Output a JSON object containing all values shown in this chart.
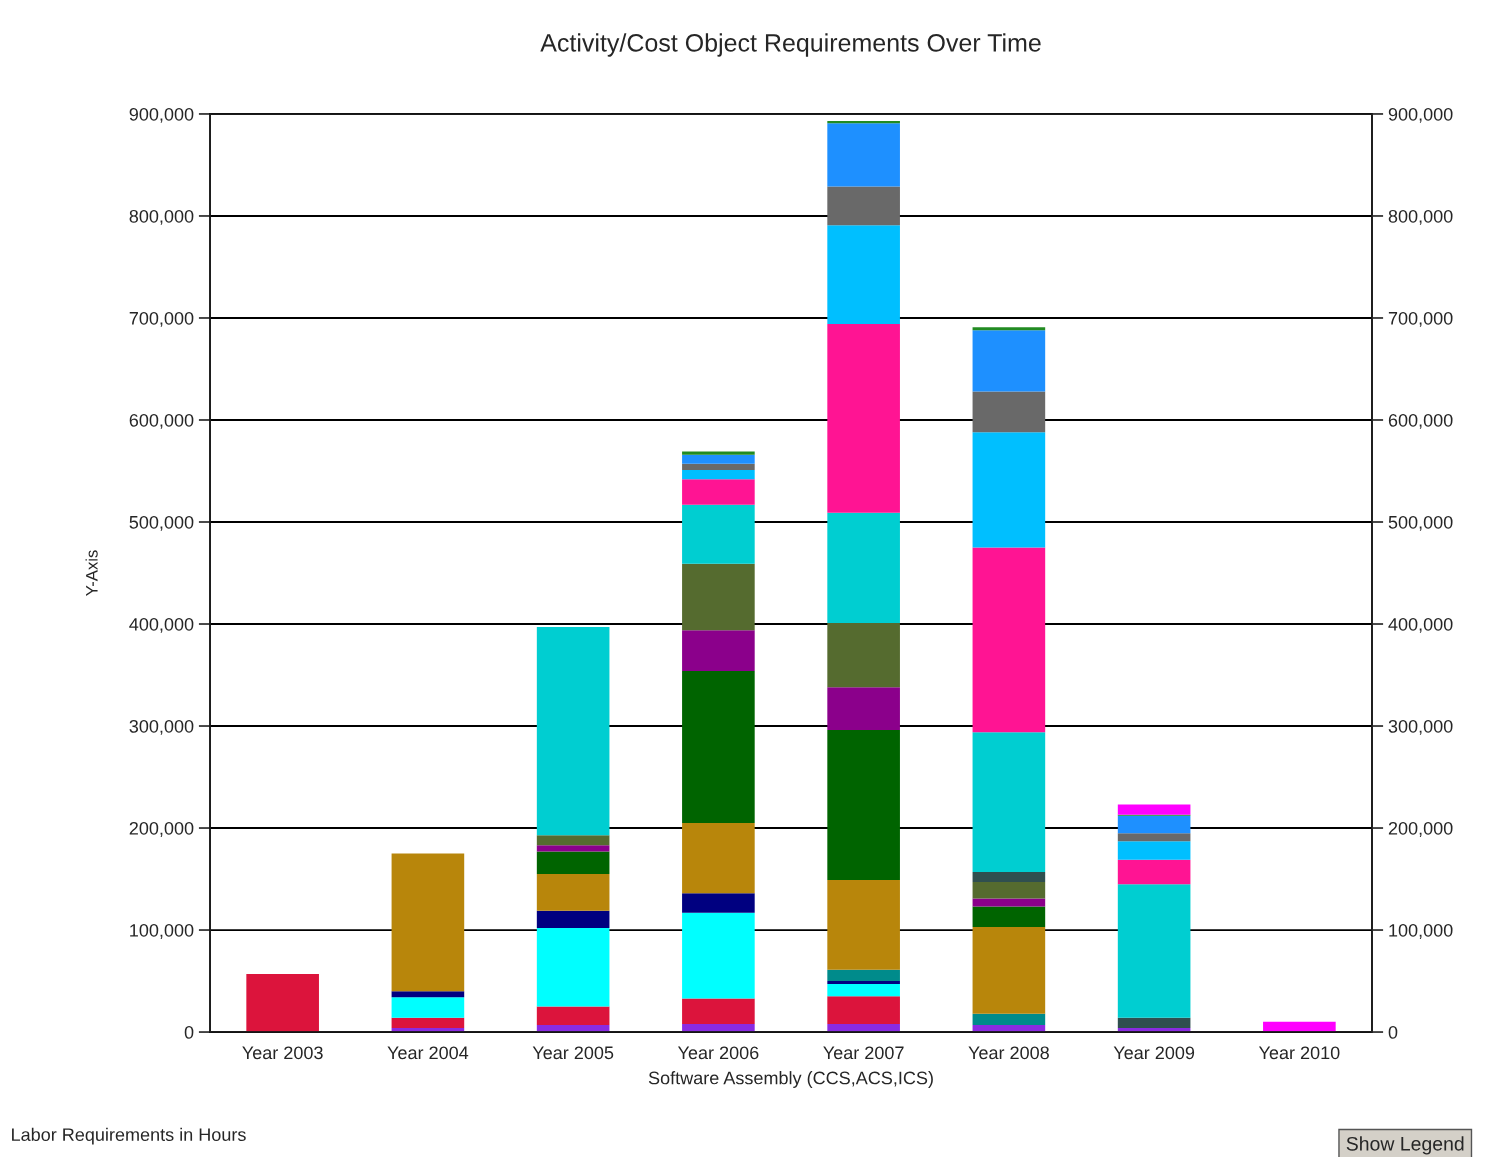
{
  "chart_data": {
    "type": "bar",
    "stacked": true,
    "title": "Activity/Cost Object Requirements Over Time",
    "xlabel": "Software Assembly (CCS,ACS,ICS)",
    "ylabel": "Y-Axis",
    "annotations": [
      "Labor Requirements in Hours",
      "Show Legend"
    ],
    "categories": [
      "Year 2003",
      "Year 2004",
      "Year 2005",
      "Year 2006",
      "Year 2007",
      "Year 2008",
      "Year 2009",
      "Year 2010"
    ],
    "ylim": [
      0,
      900000
    ],
    "yticks": [
      0,
      {
        "value": 100000,
        "label": "100,000"
      },
      {
        "value": 200000,
        "label": "200,000"
      },
      {
        "value": 300000,
        "label": "300,000"
      },
      {
        "value": 400000,
        "label": "400,000"
      },
      {
        "value": 500000,
        "label": "500,000"
      },
      {
        "value": 600000,
        "label": "600,000"
      },
      {
        "value": 700000,
        "label": "700,000"
      },
      {
        "value": 800000,
        "label": "800,000"
      },
      {
        "value": 900000,
        "label": "900,000"
      }
    ],
    "y2lim": [
      0,
      900000
    ],
    "y2ticks": [
      0,
      {
        "value": 100000,
        "label": "100,000"
      },
      {
        "value": 200000,
        "label": "200,000"
      },
      {
        "value": 300000,
        "label": "300,000"
      },
      {
        "value": 400000,
        "label": "400,000"
      },
      {
        "value": 500000,
        "label": "500,000"
      },
      {
        "value": 600000,
        "label": "600,000"
      },
      {
        "value": 700000,
        "label": "700,000"
      },
      {
        "value": 800000,
        "label": "800,000"
      },
      {
        "value": 900000,
        "label": "900,000"
      }
    ],
    "grid": true,
    "series": [
      {
        "color": "#8a2be2",
        "values": [
          null,
          4000,
          7000,
          8000,
          8000,
          7000,
          4000,
          null
        ]
      },
      {
        "color": "#dc143c",
        "values": [
          57000,
          10000,
          18000,
          25000,
          27000,
          null,
          null,
          null
        ]
      },
      {
        "color": "#00ffff",
        "values": [
          null,
          20000,
          77000,
          84000,
          12000,
          null,
          null,
          null
        ]
      },
      {
        "color": "#000080",
        "values": [
          null,
          6000,
          17000,
          19000,
          3000,
          null,
          null,
          null
        ]
      },
      {
        "color": "#008b8b",
        "values": [
          null,
          null,
          null,
          null,
          11000,
          11000,
          null,
          null
        ]
      },
      {
        "color": "#b8860b",
        "values": [
          null,
          135000,
          36000,
          69000,
          88000,
          85000,
          null,
          null
        ]
      },
      {
        "color": "#006400",
        "values": [
          null,
          null,
          22000,
          149000,
          147000,
          20000,
          null,
          null
        ]
      },
      {
        "color": "#8b008b",
        "values": [
          null,
          null,
          6000,
          40000,
          42000,
          8000,
          null,
          null
        ]
      },
      {
        "color": "#556b2f",
        "values": [
          null,
          null,
          10000,
          65000,
          63000,
          16000,
          null,
          null
        ]
      },
      {
        "color": "#2f4f4f",
        "values": [
          null,
          null,
          null,
          null,
          null,
          10000,
          10000,
          null
        ]
      },
      {
        "color": "#00ced1",
        "values": [
          null,
          null,
          204000,
          58000,
          108000,
          137000,
          131000,
          null
        ]
      },
      {
        "color": "#ff1493",
        "values": [
          null,
          null,
          null,
          25000,
          185000,
          181000,
          24000,
          null
        ]
      },
      {
        "color": "#00bfff",
        "values": [
          null,
          null,
          null,
          9000,
          97000,
          113000,
          18000,
          null
        ]
      },
      {
        "color": "#696969",
        "values": [
          null,
          null,
          null,
          6000,
          38000,
          40000,
          8000,
          null
        ]
      },
      {
        "color": "#1e90ff",
        "values": [
          null,
          null,
          null,
          9000,
          62000,
          60000,
          17000,
          null
        ]
      },
      {
        "color": "#228b22",
        "values": [
          null,
          null,
          null,
          3000,
          2000,
          3000,
          1000,
          null
        ]
      },
      {
        "color": "#ff00ff",
        "values": [
          null,
          null,
          null,
          null,
          null,
          null,
          10000,
          10000
        ]
      }
    ]
  }
}
